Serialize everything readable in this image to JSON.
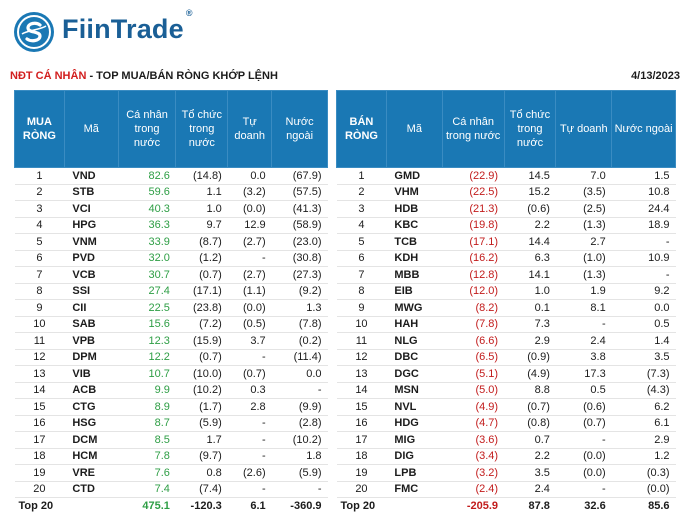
{
  "brand": "FiinTrade",
  "brand_mark": "®",
  "title_red": "NĐT CÁ NHÂN",
  "title_dark": " - TOP MUA/BÁN RÒNG KHỚP LỆNH",
  "date": "4/13/2023",
  "buy": {
    "headers": [
      "MUA RÒNG",
      "Mã",
      "Cá nhân trong nước",
      "Tổ chức trong nước",
      "Tự doanh",
      "Nước ngoài"
    ],
    "rows": [
      [
        "1",
        "VND",
        "82.6",
        "(14.8)",
        "0.0",
        "(67.9)"
      ],
      [
        "2",
        "STB",
        "59.6",
        "1.1",
        "(3.2)",
        "(57.5)"
      ],
      [
        "3",
        "VCI",
        "40.3",
        "1.0",
        "(0.0)",
        "(41.3)"
      ],
      [
        "4",
        "HPG",
        "36.3",
        "9.7",
        "12.9",
        "(58.9)"
      ],
      [
        "5",
        "VNM",
        "33.9",
        "(8.7)",
        "(2.7)",
        "(23.0)"
      ],
      [
        "6",
        "PVD",
        "32.0",
        "(1.2)",
        "-",
        "(30.8)"
      ],
      [
        "7",
        "VCB",
        "30.7",
        "(0.7)",
        "(2.7)",
        "(27.3)"
      ],
      [
        "8",
        "SSI",
        "27.4",
        "(17.1)",
        "(1.1)",
        "(9.2)"
      ],
      [
        "9",
        "CII",
        "22.5",
        "(23.8)",
        "(0.0)",
        "1.3"
      ],
      [
        "10",
        "SAB",
        "15.6",
        "(7.2)",
        "(0.5)",
        "(7.8)"
      ],
      [
        "11",
        "VPB",
        "12.3",
        "(15.9)",
        "3.7",
        "(0.2)"
      ],
      [
        "12",
        "DPM",
        "12.2",
        "(0.7)",
        "-",
        "(11.4)"
      ],
      [
        "13",
        "VIB",
        "10.7",
        "(10.0)",
        "(0.7)",
        "0.0"
      ],
      [
        "14",
        "ACB",
        "9.9",
        "(10.2)",
        "0.3",
        "-"
      ],
      [
        "15",
        "CTG",
        "8.9",
        "(1.7)",
        "2.8",
        "(9.9)"
      ],
      [
        "16",
        "HSG",
        "8.7",
        "(5.9)",
        "-",
        "(2.8)"
      ],
      [
        "17",
        "DCM",
        "8.5",
        "1.7",
        "-",
        "(10.2)"
      ],
      [
        "18",
        "HCM",
        "7.8",
        "(9.7)",
        "-",
        "1.8"
      ],
      [
        "19",
        "VRE",
        "7.6",
        "0.8",
        "(2.6)",
        "(5.9)"
      ],
      [
        "20",
        "CTD",
        "7.4",
        "(7.4)",
        "-",
        "-"
      ]
    ],
    "total": [
      "Top 20",
      "475.1",
      "-120.3",
      "6.1",
      "-360.9"
    ]
  },
  "sell": {
    "headers": [
      "BÁN RÒNG",
      "Mã",
      "Cá nhân trong nước",
      "Tổ chức trong nước",
      "Tự doanh",
      "Nước ngoài"
    ],
    "rows": [
      [
        "1",
        "GMD",
        "(22.9)",
        "14.5",
        "7.0",
        "1.5"
      ],
      [
        "2",
        "VHM",
        "(22.5)",
        "15.2",
        "(3.5)",
        "10.8"
      ],
      [
        "3",
        "HDB",
        "(21.3)",
        "(0.6)",
        "(2.5)",
        "24.4"
      ],
      [
        "4",
        "KBC",
        "(19.8)",
        "2.2",
        "(1.3)",
        "18.9"
      ],
      [
        "5",
        "TCB",
        "(17.1)",
        "14.4",
        "2.7",
        "-"
      ],
      [
        "6",
        "KDH",
        "(16.2)",
        "6.3",
        "(1.0)",
        "10.9"
      ],
      [
        "7",
        "MBB",
        "(12.8)",
        "14.1",
        "(1.3)",
        "-"
      ],
      [
        "8",
        "EIB",
        "(12.0)",
        "1.0",
        "1.9",
        "9.2"
      ],
      [
        "9",
        "MWG",
        "(8.2)",
        "0.1",
        "8.1",
        "0.0"
      ],
      [
        "10",
        "HAH",
        "(7.8)",
        "7.3",
        "-",
        "0.5"
      ],
      [
        "11",
        "NLG",
        "(6.6)",
        "2.9",
        "2.4",
        "1.4"
      ],
      [
        "12",
        "DBC",
        "(6.5)",
        "(0.9)",
        "3.8",
        "3.5"
      ],
      [
        "13",
        "DGC",
        "(5.1)",
        "(4.9)",
        "17.3",
        "(7.3)"
      ],
      [
        "14",
        "MSN",
        "(5.0)",
        "8.8",
        "0.5",
        "(4.3)"
      ],
      [
        "15",
        "NVL",
        "(4.9)",
        "(0.7)",
        "(0.6)",
        "6.2"
      ],
      [
        "16",
        "HDG",
        "(4.7)",
        "(0.8)",
        "(0.7)",
        "6.1"
      ],
      [
        "17",
        "MIG",
        "(3.6)",
        "0.7",
        "-",
        "2.9"
      ],
      [
        "18",
        "DIG",
        "(3.4)",
        "2.2",
        "(0.0)",
        "1.2"
      ],
      [
        "19",
        "LPB",
        "(3.2)",
        "3.5",
        "(0.0)",
        "(0.3)"
      ],
      [
        "20",
        "FMC",
        "(2.4)",
        "2.4",
        "-",
        "(0.0)"
      ]
    ],
    "total": [
      "Top 20",
      "-205.9",
      "87.8",
      "32.6",
      "85.6"
    ]
  },
  "colors": {
    "header_blue": "#1a78b4",
    "positive": "#2e9e45",
    "negative": "#c21c1c",
    "title_red": "#d21e1e"
  }
}
